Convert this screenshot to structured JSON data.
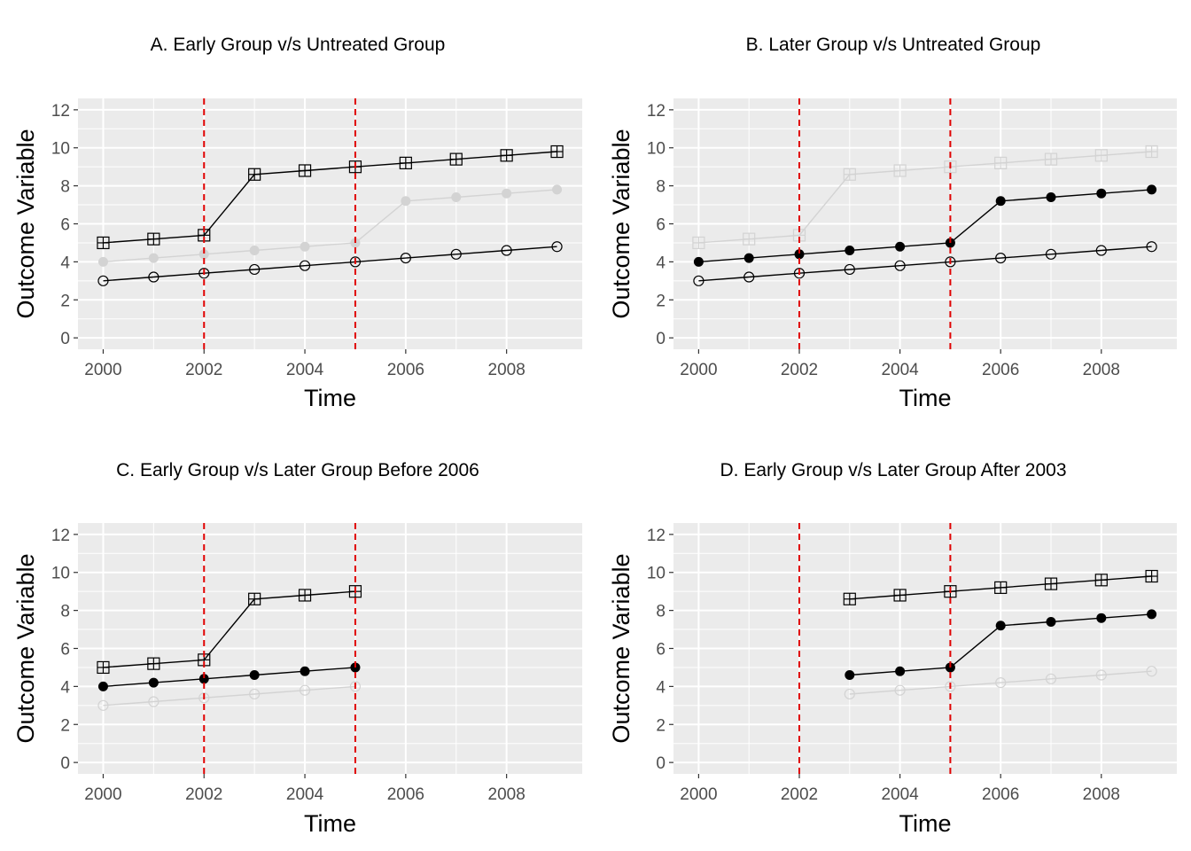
{
  "chart_data": [
    {
      "type": "line",
      "title": "A. Early Group v/s Untreated Group",
      "xlabel": "Time",
      "ylabel": "Outcome Variable",
      "xlim": [
        1999.5,
        2009.5
      ],
      "ylim": [
        -0.6,
        12.6
      ],
      "x_ticks": [
        2000,
        2002,
        2004,
        2006,
        2008
      ],
      "y_ticks": [
        0,
        2,
        4,
        6,
        8,
        10,
        12
      ],
      "grid": true,
      "vlines": [
        2002,
        2005
      ],
      "vline_color": "#e00000",
      "series": [
        {
          "marker": "square-plus",
          "color": "#d3d3d3",
          "x": [
            2000,
            2001,
            2002,
            2003,
            2004,
            2005,
            2006,
            2007,
            2008,
            2009
          ],
          "y": [
            5,
            5.2,
            5.4,
            8.6,
            8.8,
            9,
            9.2,
            9.4,
            9.6,
            9.8
          ]
        },
        {
          "marker": "filled-circle",
          "color": "#d3d3d3",
          "x": [
            2000,
            2001,
            2002,
            2003,
            2004,
            2005,
            2006,
            2007,
            2008,
            2009
          ],
          "y": [
            4,
            4.2,
            4.4,
            4.6,
            4.8,
            5,
            7.2,
            7.4,
            7.6,
            7.8
          ]
        },
        {
          "marker": "open-circle",
          "color": "#000000",
          "x": [
            2000,
            2001,
            2002,
            2003,
            2004,
            2005,
            2006,
            2007,
            2008,
            2009
          ],
          "y": [
            3,
            3.2,
            3.4,
            3.6,
            3.8,
            4,
            4.2,
            4.4,
            4.6,
            4.8
          ]
        },
        {
          "marker": "square-plus",
          "color": "#000000",
          "x": [
            2000,
            2001,
            2002,
            2003,
            2004,
            2005,
            2006,
            2007,
            2008,
            2009
          ],
          "y": [
            5,
            5.2,
            5.4,
            8.6,
            8.8,
            9,
            9.2,
            9.4,
            9.6,
            9.8
          ]
        }
      ]
    },
    {
      "type": "line",
      "title": "B. Later Group v/s Untreated Group",
      "xlabel": "Time",
      "ylabel": "Outcome Variable",
      "xlim": [
        1999.5,
        2009.5
      ],
      "ylim": [
        -0.6,
        12.6
      ],
      "x_ticks": [
        2000,
        2002,
        2004,
        2006,
        2008
      ],
      "y_ticks": [
        0,
        2,
        4,
        6,
        8,
        10,
        12
      ],
      "grid": true,
      "vlines": [
        2002,
        2005
      ],
      "vline_color": "#e00000",
      "series": [
        {
          "marker": "square-plus",
          "color": "#d3d3d3",
          "x": [
            2000,
            2001,
            2002,
            2003,
            2004,
            2005,
            2006,
            2007,
            2008,
            2009
          ],
          "y": [
            5,
            5.2,
            5.4,
            8.6,
            8.8,
            9,
            9.2,
            9.4,
            9.6,
            9.8
          ]
        },
        {
          "marker": "filled-circle",
          "color": "#000000",
          "x": [
            2000,
            2001,
            2002,
            2003,
            2004,
            2005,
            2006,
            2007,
            2008,
            2009
          ],
          "y": [
            4,
            4.2,
            4.4,
            4.6,
            4.8,
            5,
            7.2,
            7.4,
            7.6,
            7.8
          ]
        },
        {
          "marker": "open-circle",
          "color": "#000000",
          "x": [
            2000,
            2001,
            2002,
            2003,
            2004,
            2005,
            2006,
            2007,
            2008,
            2009
          ],
          "y": [
            3,
            3.2,
            3.4,
            3.6,
            3.8,
            4,
            4.2,
            4.4,
            4.6,
            4.8
          ]
        }
      ]
    },
    {
      "type": "line",
      "title": "C. Early Group v/s Later Group Before 2006",
      "xlabel": "Time",
      "ylabel": "Outcome Variable",
      "xlim": [
        1999.5,
        2009.5
      ],
      "ylim": [
        -0.6,
        12.6
      ],
      "x_ticks": [
        2000,
        2002,
        2004,
        2006,
        2008
      ],
      "y_ticks": [
        0,
        2,
        4,
        6,
        8,
        10,
        12
      ],
      "grid": true,
      "vlines": [
        2002,
        2005
      ],
      "vline_color": "#e00000",
      "series": [
        {
          "marker": "open-circle",
          "color": "#d3d3d3",
          "x": [
            2000,
            2001,
            2002,
            2003,
            2004,
            2005
          ],
          "y": [
            3,
            3.2,
            3.4,
            3.6,
            3.8,
            4
          ]
        },
        {
          "marker": "filled-circle",
          "color": "#000000",
          "x": [
            2000,
            2001,
            2002,
            2003,
            2004,
            2005
          ],
          "y": [
            4,
            4.2,
            4.4,
            4.6,
            4.8,
            5
          ]
        },
        {
          "marker": "square-plus",
          "color": "#000000",
          "x": [
            2000,
            2001,
            2002,
            2003,
            2004,
            2005
          ],
          "y": [
            5,
            5.2,
            5.4,
            8.6,
            8.8,
            9
          ]
        }
      ]
    },
    {
      "type": "line",
      "title": "D. Early Group v/s Later Group After 2003",
      "xlabel": "Time",
      "ylabel": "Outcome Variable",
      "xlim": [
        1999.5,
        2009.5
      ],
      "ylim": [
        -0.6,
        12.6
      ],
      "x_ticks": [
        2000,
        2002,
        2004,
        2006,
        2008
      ],
      "y_ticks": [
        0,
        2,
        4,
        6,
        8,
        10,
        12
      ],
      "grid": true,
      "vlines": [
        2002,
        2005
      ],
      "vline_color": "#e00000",
      "series": [
        {
          "marker": "open-circle",
          "color": "#d3d3d3",
          "x": [
            2003,
            2004,
            2005,
            2006,
            2007,
            2008,
            2009
          ],
          "y": [
            3.6,
            3.8,
            4,
            4.2,
            4.4,
            4.6,
            4.8
          ]
        },
        {
          "marker": "filled-circle",
          "color": "#000000",
          "x": [
            2003,
            2004,
            2005,
            2006,
            2007,
            2008,
            2009
          ],
          "y": [
            4.6,
            4.8,
            5,
            7.2,
            7.4,
            7.6,
            7.8
          ]
        },
        {
          "marker": "square-plus",
          "color": "#000000",
          "x": [
            2003,
            2004,
            2005,
            2006,
            2007,
            2008,
            2009
          ],
          "y": [
            8.6,
            8.8,
            9,
            9.2,
            9.4,
            9.6,
            9.8
          ]
        }
      ]
    }
  ]
}
